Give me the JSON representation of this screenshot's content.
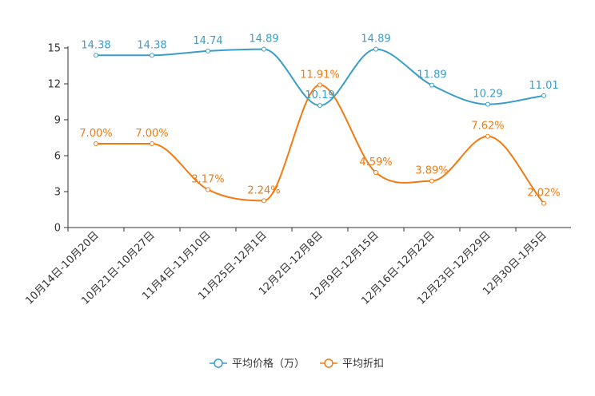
{
  "chart_data": {
    "type": "line",
    "title": "",
    "xlabel": "",
    "ylabel": "",
    "ylim": [
      0,
      15
    ],
    "yticks": [
      "0",
      "3",
      "6",
      "9",
      "12",
      "15"
    ],
    "categories": [
      "10月14日-10月20日",
      "10月21日-10月27日",
      "11月4日-11月10日",
      "11月25日-12月1日",
      "12月2日-12月8日",
      "12月9日-12月15日",
      "12月16日-12月22日",
      "12月23日-12月29日",
      "12月30日-1月5日"
    ],
    "series": [
      {
        "name": "平均价格（万）",
        "color": "#3a9dc9",
        "values": [
          14.38,
          14.38,
          14.74,
          14.89,
          10.19,
          14.89,
          11.89,
          10.29,
          11.01
        ],
        "labels": [
          "14.38",
          "14.38",
          "14.74",
          "14.89",
          "10.19",
          "14.89",
          "11.89",
          "10.29",
          "11.01"
        ]
      },
      {
        "name": "平均折扣",
        "color": "#f07a13",
        "values": [
          7.0,
          7.0,
          3.17,
          2.24,
          11.91,
          4.59,
          3.89,
          7.62,
          2.02
        ],
        "labels": [
          "7.00%",
          "7.00%",
          "3.17%",
          "2.24%",
          "11.91%",
          "4.59%",
          "3.89%",
          "7.62%",
          "2.02%"
        ]
      }
    ],
    "legend": "bottom-center"
  }
}
